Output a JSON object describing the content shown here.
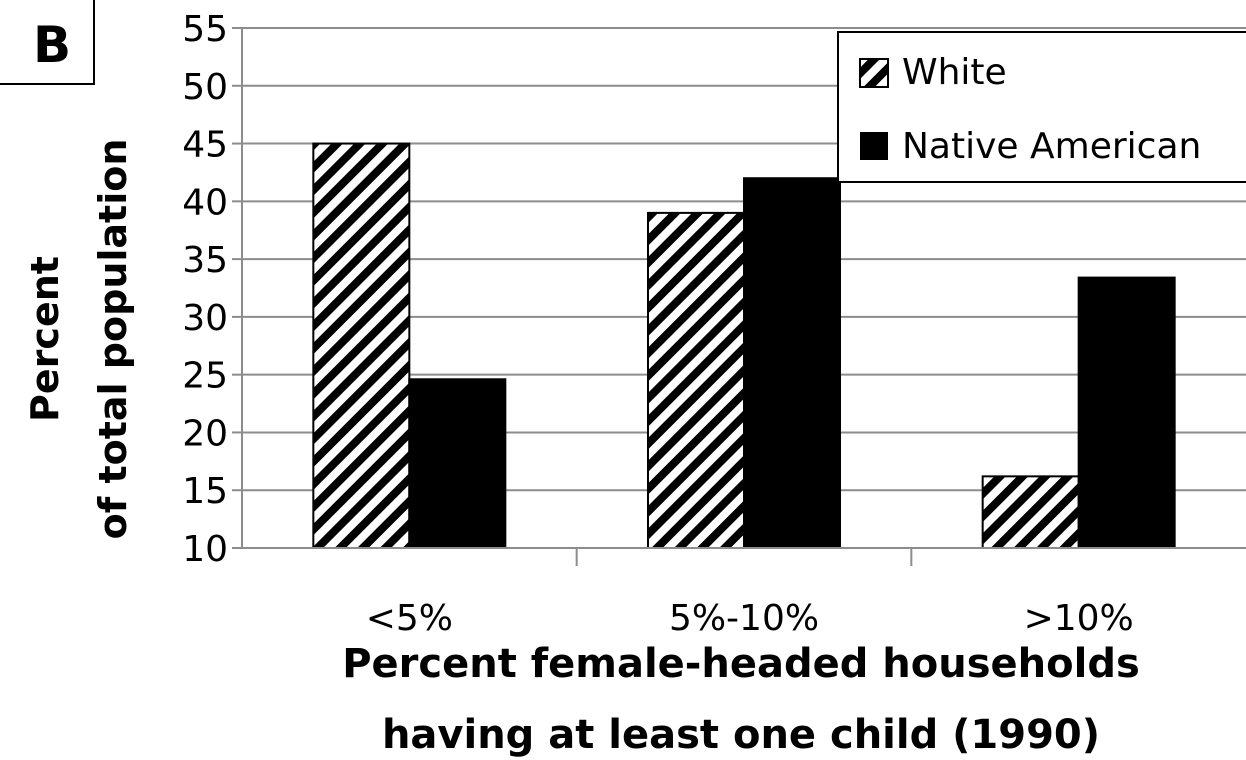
{
  "panel_label": "B",
  "chart_data": {
    "type": "bar",
    "categories": [
      "<5%",
      "5%-10%",
      ">10%"
    ],
    "series": [
      {
        "name": "White",
        "values": [
          45,
          39,
          16.2
        ],
        "pattern": "diagonal-hatch",
        "color": "#000000"
      },
      {
        "name": "Native American",
        "values": [
          24.6,
          42,
          33.4
        ],
        "pattern": "solid",
        "color": "#000000"
      }
    ],
    "title": "",
    "xlabel": [
      "Percent female-headed households",
      "having at least one child (1990)"
    ],
    "ylabel": [
      "Percent",
      "of total population"
    ],
    "ylim": [
      10,
      55
    ],
    "yticks": [
      "10",
      "15",
      "20",
      "25",
      "30",
      "35",
      "40",
      "45",
      "50",
      "55"
    ],
    "grid": true,
    "legend_placement": "top-right"
  }
}
